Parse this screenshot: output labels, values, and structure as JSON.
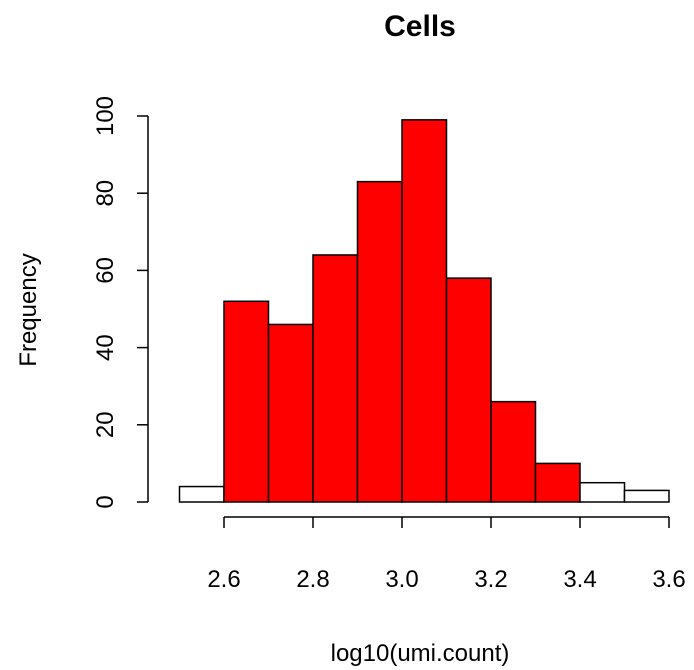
{
  "chart_data": {
    "type": "bar",
    "title": "Cells",
    "xlabel": "log10(umi.count)",
    "ylabel": "Frequency",
    "x_ticks": [
      2.6,
      2.8,
      3.0,
      3.2,
      3.4,
      3.6
    ],
    "x_tick_labels": [
      "2.6",
      "2.8",
      "3.0",
      "3.2",
      "3.4",
      "3.6"
    ],
    "y_ticks": [
      0,
      20,
      40,
      60,
      80,
      100
    ],
    "y_tick_labels": [
      "0",
      "20",
      "40",
      "60",
      "80",
      "100"
    ],
    "xlim": [
      2.5,
      3.6
    ],
    "ylim": [
      0,
      100
    ],
    "grid": false,
    "bins": [
      {
        "start": 2.5,
        "end": 2.6,
        "count": 4,
        "color": "#ffffff"
      },
      {
        "start": 2.6,
        "end": 2.7,
        "count": 52,
        "color": "#ff0000"
      },
      {
        "start": 2.7,
        "end": 2.8,
        "count": 46,
        "color": "#ff0000"
      },
      {
        "start": 2.8,
        "end": 2.9,
        "count": 64,
        "color": "#ff0000"
      },
      {
        "start": 2.9,
        "end": 3.0,
        "count": 83,
        "color": "#ff0000"
      },
      {
        "start": 3.0,
        "end": 3.1,
        "count": 99,
        "color": "#ff0000"
      },
      {
        "start": 3.1,
        "end": 3.2,
        "count": 58,
        "color": "#ff0000"
      },
      {
        "start": 3.2,
        "end": 3.3,
        "count": 26,
        "color": "#ff0000"
      },
      {
        "start": 3.3,
        "end": 3.4,
        "count": 10,
        "color": "#ff0000"
      },
      {
        "start": 3.4,
        "end": 3.5,
        "count": 5,
        "color": "#ffffff"
      },
      {
        "start": 3.5,
        "end": 3.6,
        "count": 3,
        "color": "#ffffff"
      }
    ]
  }
}
